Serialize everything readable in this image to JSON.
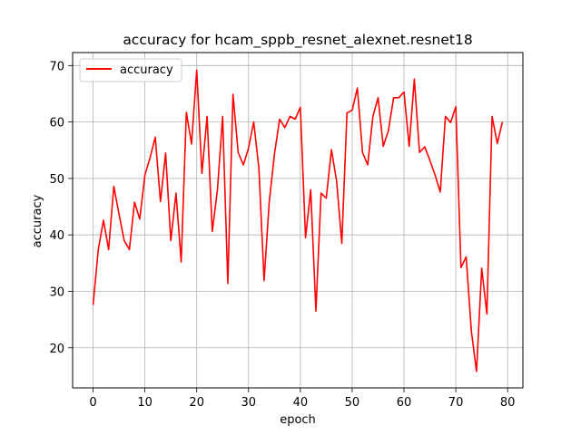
{
  "chart_data": {
    "type": "line",
    "title": "accuracy for hcam_sppb_resnet_alexnet.resnet18",
    "xlabel": "epoch",
    "ylabel": "accuracy",
    "xlim": [
      -3.95,
      82.95
    ],
    "ylim": [
      12.9,
      72.3
    ],
    "x_ticks": [
      0,
      10,
      20,
      30,
      40,
      50,
      60,
      70,
      80
    ],
    "y_ticks": [
      20,
      30,
      40,
      50,
      60,
      70
    ],
    "grid": true,
    "legend": "upper-left",
    "series": [
      {
        "name": "accuracy",
        "color": "#ff0000",
        "x": [
          0,
          1,
          2,
          3,
          4,
          5,
          6,
          7,
          8,
          9,
          10,
          11,
          12,
          13,
          14,
          15,
          16,
          17,
          18,
          19,
          20,
          21,
          22,
          23,
          24,
          25,
          26,
          27,
          28,
          29,
          30,
          31,
          32,
          33,
          34,
          35,
          36,
          37,
          38,
          39,
          40,
          41,
          42,
          43,
          44,
          45,
          46,
          47,
          48,
          49,
          50,
          51,
          52,
          53,
          54,
          55,
          56,
          57,
          58,
          59,
          60,
          61,
          62,
          63,
          64,
          65,
          66,
          67,
          68,
          69,
          70,
          71,
          72,
          73,
          74,
          75,
          76,
          77,
          78,
          79
        ],
        "values": [
          27.6,
          37.4,
          42.6,
          37.4,
          48.6,
          43.7,
          39.0,
          37.4,
          45.8,
          42.8,
          50.6,
          53.7,
          57.3,
          45.9,
          54.5,
          39.0,
          47.4,
          35.2,
          61.7,
          56.1,
          69.2,
          50.9,
          61.0,
          40.6,
          48.0,
          61.0,
          31.4,
          64.9,
          54.6,
          52.4,
          55.4,
          60.0,
          51.8,
          31.9,
          45.9,
          54.3,
          60.5,
          59.0,
          61.0,
          60.5,
          62.6,
          39.5,
          48.0,
          26.5,
          47.4,
          46.5,
          55.1,
          49.5,
          38.5,
          61.6,
          62.1,
          66.0,
          54.6,
          52.4,
          61.0,
          64.3,
          55.7,
          58.5,
          64.3,
          64.3,
          65.3,
          55.7,
          67.6,
          54.6,
          55.6,
          53.2,
          50.6,
          47.6,
          61.0,
          59.9,
          62.7,
          34.2,
          36.1,
          23.0,
          15.8,
          34.1,
          26.0,
          61.0,
          56.2,
          60.0
        ]
      }
    ]
  }
}
